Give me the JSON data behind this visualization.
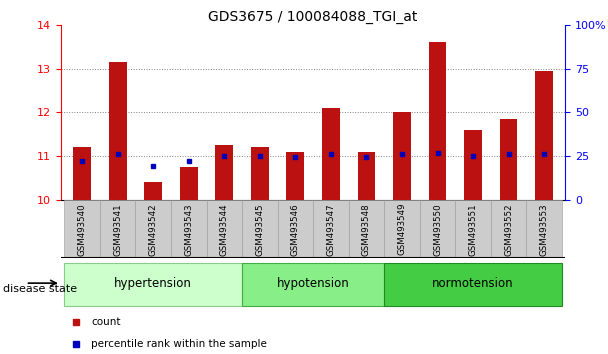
{
  "title": "GDS3675 / 100084088_TGI_at",
  "samples": [
    "GSM493540",
    "GSM493541",
    "GSM493542",
    "GSM493543",
    "GSM493544",
    "GSM493545",
    "GSM493546",
    "GSM493547",
    "GSM493548",
    "GSM493549",
    "GSM493550",
    "GSM493551",
    "GSM493552",
    "GSM493553"
  ],
  "counts": [
    11.2,
    13.15,
    10.4,
    10.75,
    11.25,
    11.2,
    11.1,
    12.1,
    11.1,
    12.0,
    13.6,
    11.6,
    11.85,
    12.95
  ],
  "percentiles": [
    10.9,
    11.05,
    10.78,
    10.9,
    11.0,
    11.0,
    10.98,
    11.05,
    10.98,
    11.05,
    11.07,
    11.0,
    11.05,
    11.05
  ],
  "ymin": 10,
  "ymax": 14,
  "yticks_left": [
    10,
    11,
    12,
    13,
    14
  ],
  "right_ytick_pcts": [
    0,
    25,
    50,
    75,
    100
  ],
  "groups": [
    {
      "label": "hypertension",
      "start": 0,
      "end": 5,
      "color": "#ccffcc",
      "border": "#88cc88"
    },
    {
      "label": "hypotension",
      "start": 5,
      "end": 9,
      "color": "#88ee88",
      "border": "#44aa44"
    },
    {
      "label": "normotension",
      "start": 9,
      "end": 14,
      "color": "#44cc44",
      "border": "#228822"
    }
  ],
  "bar_color": "#bb1111",
  "percentile_color": "#0000bb",
  "bar_width": 0.5,
  "tick_area_color": "#cccccc",
  "tick_area_edge": "#999999",
  "legend_count_label": "count",
  "legend_pct_label": "percentile rank within the sample",
  "disease_state_label": "disease state"
}
